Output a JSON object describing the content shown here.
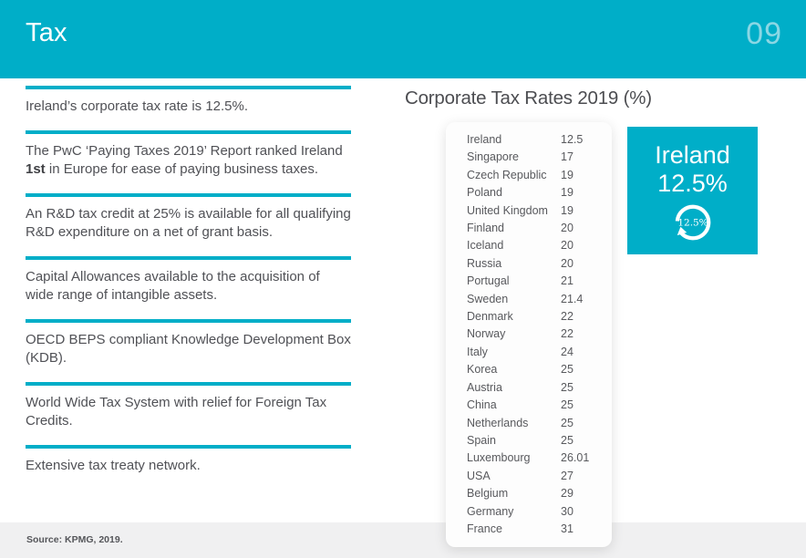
{
  "header": {
    "title": "Tax",
    "page_number": "09"
  },
  "colors": {
    "accent_teal": "#00aec8",
    "page_number_teal": "#8bd7e4",
    "body_text": "#505156",
    "footer_band": "#f0f0f1"
  },
  "facts": {
    "items": [
      {
        "segments": [
          {
            "text": "Ireland’s corporate tax rate is 12.5%.",
            "bold": false
          }
        ]
      },
      {
        "segments": [
          {
            "text": "The PwC ‘Paying Taxes 2019’ Report ranked Ireland ",
            "bold": false
          },
          {
            "text": "1st",
            "bold": true
          },
          {
            "text": " in Europe for ease of paying business taxes.",
            "bold": false
          }
        ]
      },
      {
        "segments": [
          {
            "text": "An R&D tax credit at 25% is available for all qualifying R&D expenditure on a net of grant basis.",
            "bold": false
          }
        ]
      },
      {
        "segments": [
          {
            "text": "Capital Allowances available to the acquisition of wide range of intangible assets.",
            "bold": false
          }
        ]
      },
      {
        "segments": [
          {
            "text": "OECD BEPS compliant Knowledge Development Box (KDB).",
            "bold": false
          }
        ]
      },
      {
        "segments": [
          {
            "text": "World Wide Tax System with relief for Foreign Tax Credits.",
            "bold": false
          }
        ]
      },
      {
        "segments": [
          {
            "text": "Extensive tax treaty network.",
            "bold": false
          }
        ]
      }
    ]
  },
  "rates": {
    "title": "Corporate Tax Rates 2019 (%)",
    "rows": [
      {
        "country": "Ireland",
        "rate": "12.5"
      },
      {
        "country": "Singapore",
        "rate": "17"
      },
      {
        "country": "Czech Republic",
        "rate": "19"
      },
      {
        "country": "Poland",
        "rate": "19"
      },
      {
        "country": "United Kingdom",
        "rate": "19"
      },
      {
        "country": "Finland",
        "rate": "20"
      },
      {
        "country": "Iceland",
        "rate": "20"
      },
      {
        "country": "Russia",
        "rate": "20"
      },
      {
        "country": "Portugal",
        "rate": "21"
      },
      {
        "country": "Sweden",
        "rate": "21.4"
      },
      {
        "country": "Denmark",
        "rate": "22"
      },
      {
        "country": "Norway",
        "rate": "22"
      },
      {
        "country": "Italy",
        "rate": "24"
      },
      {
        "country": "Korea",
        "rate": "25"
      },
      {
        "country": "Austria",
        "rate": "25"
      },
      {
        "country": "China",
        "rate": "25"
      },
      {
        "country": "Netherlands",
        "rate": "25"
      },
      {
        "country": "Spain",
        "rate": "25"
      },
      {
        "country": "Luxembourg",
        "rate": "26.01"
      },
      {
        "country": "USA",
        "rate": "27"
      },
      {
        "country": "Belgium",
        "rate": "29"
      },
      {
        "country": "Germany",
        "rate": "30"
      },
      {
        "country": "France",
        "rate": "31"
      }
    ]
  },
  "highlight": {
    "country": "Ireland",
    "rate": "12.5%",
    "donut_label": "12.5%"
  },
  "footer": {
    "source": "Source: KPMG, 2019."
  }
}
